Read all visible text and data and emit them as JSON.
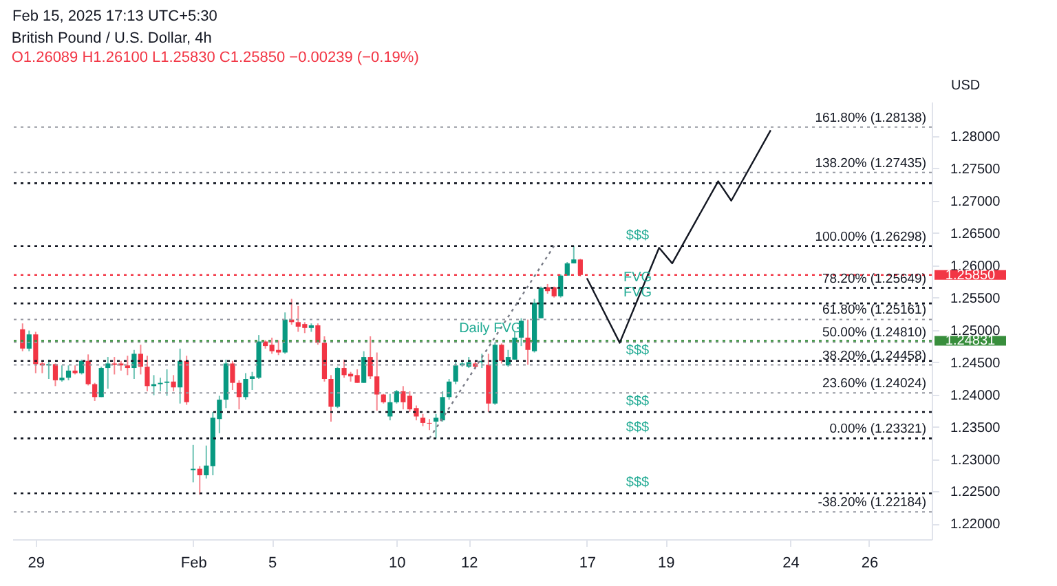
{
  "chart_data": {
    "type": "candlestick",
    "title": "British Pound / U.S. Dollar, 4h",
    "subtitle": "O1.26089 H1.26100 L1.25830 C1.25850 −0.00239 (−0.19%)",
    "ylabel": "USD",
    "annotations": [
      "Feb 15, 2025 17:13 UTC+5:30",
      {
        "text": "Daily FVG",
        "y": 1.24831
      }
    ],
    "categories": [
      null,
      null,
      "29",
      null,
      null,
      null,
      null,
      null,
      null,
      null,
      null,
      null,
      null,
      null,
      null,
      null,
      null,
      null,
      null,
      null,
      null,
      null,
      null,
      null,
      null,
      null,
      "Feb",
      null,
      null,
      null,
      null,
      null,
      null,
      null,
      null,
      null,
      null,
      null,
      "5",
      null,
      null,
      null,
      null,
      null,
      null,
      null,
      null,
      null,
      null,
      null,
      null,
      null,
      null,
      null,
      null,
      null,
      null,
      "10",
      null,
      null,
      null,
      null,
      null,
      null,
      null,
      null,
      null,
      null,
      "12",
      null,
      null,
      null,
      null,
      null,
      null,
      null,
      null,
      null,
      null,
      null,
      null,
      null,
      null,
      null,
      null,
      null,
      "17",
      null,
      null,
      null,
      null,
      null,
      null,
      null,
      null,
      null,
      null,
      null,
      "19",
      null,
      null,
      null,
      null,
      null,
      null,
      null,
      null,
      null,
      null,
      null,
      null,
      null,
      null,
      null,
      null,
      null,
      null,
      "24",
      null,
      null,
      null,
      null,
      null,
      null,
      null,
      null,
      null,
      null,
      null,
      "26",
      null,
      null,
      null,
      null,
      null,
      null,
      null,
      null
    ],
    "ohlc": [
      [
        1.2501,
        1.251,
        1.2467,
        1.2471
      ],
      [
        1.2471,
        1.2499,
        1.2467,
        1.2493
      ],
      [
        1.2493,
        1.2497,
        1.2433,
        1.2447
      ],
      [
        1.2448,
        1.2452,
        1.2433,
        1.2445
      ],
      [
        1.2445,
        1.2454,
        1.2424,
        1.2447
      ],
      [
        1.2447,
        1.2448,
        1.2413,
        1.2422
      ],
      [
        1.2422,
        1.2445,
        1.242,
        1.2426
      ],
      [
        1.2426,
        1.2445,
        1.2422,
        1.2437
      ],
      [
        1.2437,
        1.2445,
        1.2431,
        1.2433
      ],
      [
        1.2433,
        1.2454,
        1.2431,
        1.2452
      ],
      [
        1.2452,
        1.2462,
        1.2414,
        1.2416
      ],
      [
        1.2416,
        1.2418,
        1.239,
        1.2396
      ],
      [
        1.2396,
        1.2443,
        1.2396,
        1.2441
      ],
      [
        1.2441,
        1.2458,
        1.2409,
        1.2448
      ],
      [
        1.2448,
        1.2458,
        1.2431,
        1.2446
      ],
      [
        1.2448,
        1.2452,
        1.2437,
        1.2445
      ],
      [
        1.2445,
        1.246,
        1.243,
        1.2441
      ],
      [
        1.2441,
        1.2469,
        1.2424,
        1.2463
      ],
      [
        1.2463,
        1.2477,
        1.2431,
        1.2443
      ],
      [
        1.2443,
        1.246,
        1.2405,
        1.2413
      ],
      [
        1.2413,
        1.243,
        1.2399,
        1.2416
      ],
      [
        1.2416,
        1.2426,
        1.2405,
        1.2418
      ],
      [
        1.2418,
        1.2439,
        1.2398,
        1.242
      ],
      [
        1.242,
        1.243,
        1.2405,
        1.2411
      ],
      [
        1.2411,
        1.2471,
        1.2386,
        1.2452
      ],
      [
        1.2452,
        1.246,
        1.2384,
        1.2388
      ],
      [
        1.2283,
        1.2322,
        1.2264,
        1.2285
      ],
      [
        1.2285,
        1.2289,
        1.2245,
        1.2275
      ],
      [
        1.2275,
        1.2321,
        1.227,
        1.229
      ],
      [
        1.2289,
        1.2373,
        1.2275,
        1.2364
      ],
      [
        1.2362,
        1.2398,
        1.234,
        1.2392
      ],
      [
        1.2392,
        1.2454,
        1.2379,
        1.2448
      ],
      [
        1.2448,
        1.2452,
        1.2407,
        1.2418
      ],
      [
        1.2418,
        1.2422,
        1.2377,
        1.2396
      ],
      [
        1.2396,
        1.2433,
        1.2392,
        1.2424
      ],
      [
        1.2424,
        1.2435,
        1.2407,
        1.2428
      ],
      [
        1.2426,
        1.2492,
        1.2424,
        1.2482
      ],
      [
        1.2482,
        1.2484,
        1.2471,
        1.2475
      ],
      [
        1.2477,
        1.2488,
        1.2463,
        1.2467
      ],
      [
        1.2469,
        1.2484,
        1.2461,
        1.2465
      ],
      [
        1.2465,
        1.2527,
        1.2463,
        1.2516
      ],
      [
        1.2516,
        1.2548,
        1.2508,
        1.2512
      ],
      [
        1.2512,
        1.2537,
        1.2497,
        1.2505
      ],
      [
        1.2509,
        1.2512,
        1.2495,
        1.2503
      ],
      [
        1.2503,
        1.251,
        1.2497,
        1.2507
      ],
      [
        1.2507,
        1.251,
        1.2477,
        1.248
      ],
      [
        1.248,
        1.249,
        1.242,
        1.2424
      ],
      [
        1.2424,
        1.243,
        1.2358,
        1.2381
      ],
      [
        1.2381,
        1.2443,
        1.2379,
        1.2441
      ],
      [
        1.2441,
        1.2454,
        1.2426,
        1.243
      ],
      [
        1.2432,
        1.2435,
        1.242,
        1.2428
      ],
      [
        1.243,
        1.2439,
        1.2418,
        1.2418
      ],
      [
        1.2418,
        1.2467,
        1.2418,
        1.2458
      ],
      [
        1.2458,
        1.249,
        1.2424,
        1.2428
      ],
      [
        1.2428,
        1.2465,
        1.2375,
        1.24
      ],
      [
        1.24,
        1.2401,
        1.2386,
        1.2388
      ],
      [
        1.2366,
        1.2401,
        1.236,
        1.2388
      ],
      [
        1.2388,
        1.2407,
        1.2386,
        1.2405
      ],
      [
        1.2405,
        1.2413,
        1.2377,
        1.2388
      ],
      [
        1.2398,
        1.2405,
        1.2373,
        1.2377
      ],
      [
        1.2379,
        1.2383,
        1.236,
        1.2366
      ],
      [
        1.2364,
        1.237,
        1.2351,
        1.2356
      ],
      [
        1.2356,
        1.2362,
        1.2345,
        1.2355
      ],
      [
        1.2358,
        1.237,
        1.2332,
        1.2364
      ],
      [
        1.236,
        1.2405,
        1.2358,
        1.2396
      ],
      [
        1.2396,
        1.2424,
        1.2392,
        1.242
      ],
      [
        1.242,
        1.2454,
        1.2416,
        1.2445
      ],
      [
        1.2445,
        1.2452,
        1.2443,
        1.2448
      ],
      [
        1.2443,
        1.2458,
        1.2441,
        1.245
      ],
      [
        1.2448,
        1.2452,
        1.2439,
        1.2443
      ],
      [
        1.245,
        1.2463,
        1.2441,
        1.2452
      ],
      [
        1.2446,
        1.2463,
        1.2373,
        1.2386
      ],
      [
        1.2386,
        1.2481,
        1.2384,
        1.2477
      ],
      [
        1.2477,
        1.2479,
        1.2448,
        1.2452
      ],
      [
        1.2445,
        1.2469,
        1.2443,
        1.2458
      ],
      [
        1.2454,
        1.2497,
        1.2454,
        1.2488
      ],
      [
        1.2488,
        1.2518,
        1.2475,
        1.2514
      ],
      [
        1.2488,
        1.2516,
        1.2446,
        1.2469
      ],
      [
        1.2467,
        1.2548,
        1.2465,
        1.2542
      ],
      [
        1.2518,
        1.2567,
        1.2518,
        1.2565
      ],
      [
        1.2566,
        1.2571,
        1.2556,
        1.256
      ],
      [
        1.2566,
        1.2567,
        1.255,
        1.2552
      ],
      [
        1.2552,
        1.2586,
        1.255,
        1.2584
      ],
      [
        1.2584,
        1.2605,
        1.2584,
        1.2603
      ],
      [
        1.2603,
        1.263,
        1.2603,
        1.2609
      ],
      [
        1.26089,
        1.261,
        1.2583,
        1.2585
      ],
      null,
      null,
      null,
      null,
      null,
      null,
      null,
      null,
      null,
      null,
      null,
      null,
      null,
      null,
      null,
      null,
      null,
      null,
      null,
      null,
      null,
      null,
      null,
      null,
      null,
      null,
      null,
      null,
      null,
      null,
      null,
      null,
      null,
      null,
      null,
      null,
      null,
      null,
      null,
      null,
      null,
      null,
      null,
      null,
      null,
      null,
      null,
      null,
      null,
      null,
      null,
      null
    ],
    "series": [
      {
        "type": "line",
        "color": "#131722",
        "line_style": "solid",
        "values": [
          null,
          null,
          null,
          null,
          null,
          null,
          null,
          null,
          null,
          null,
          null,
          null,
          null,
          null,
          null,
          null,
          null,
          null,
          null,
          null,
          null,
          null,
          null,
          null,
          null,
          null,
          null,
          null,
          null,
          null,
          null,
          null,
          null,
          null,
          null,
          null,
          null,
          null,
          null,
          null,
          null,
          null,
          null,
          null,
          null,
          null,
          null,
          null,
          null,
          null,
          null,
          null,
          null,
          null,
          null,
          null,
          null,
          null,
          null,
          null,
          null,
          null,
          null,
          null,
          null,
          null,
          null,
          null,
          null,
          null,
          null,
          null,
          null,
          null,
          null,
          null,
          null,
          null,
          null,
          null,
          null,
          null,
          null,
          null,
          null,
          null,
          1.258,
          null,
          null,
          null,
          null,
          1.248,
          null,
          null,
          null,
          null,
          null,
          1.2627,
          null,
          1.2603,
          null,
          null,
          null,
          null,
          null,
          null,
          1.273,
          null,
          1.27,
          null,
          null,
          null,
          null,
          null,
          1.2809,
          null,
          null,
          null,
          null,
          null,
          null,
          null,
          null,
          null,
          null,
          null,
          null,
          null,
          null,
          null,
          null,
          null,
          null,
          null,
          null,
          null,
          null,
          null
        ]
      },
      {
        "type": "line",
        "color": "#787b86",
        "line_style": "dotted",
        "values": [
          null,
          null,
          null,
          null,
          null,
          null,
          null,
          null,
          null,
          null,
          null,
          null,
          null,
          null,
          null,
          null,
          null,
          null,
          null,
          null,
          null,
          null,
          null,
          null,
          null,
          null,
          null,
          null,
          null,
          null,
          null,
          null,
          null,
          null,
          null,
          null,
          null,
          null,
          null,
          null,
          null,
          null,
          null,
          null,
          null,
          null,
          null,
          null,
          null,
          null,
          null,
          null,
          null,
          null,
          null,
          null,
          null,
          null,
          null,
          null,
          null,
          null,
          1.2332,
          null,
          null,
          null,
          null,
          null,
          null,
          null,
          null,
          null,
          null,
          null,
          null,
          null,
          null,
          null,
          null,
          null,
          null,
          1.263,
          null,
          null,
          null,
          null,
          null,
          null,
          null,
          null,
          null,
          null,
          null,
          null,
          null,
          null,
          null,
          null,
          null,
          null,
          null,
          null,
          null,
          null,
          null,
          null,
          null,
          null,
          null,
          null,
          null,
          null,
          null,
          null,
          null,
          null,
          null,
          null,
          null,
          null,
          null,
          null,
          null,
          null,
          null,
          null,
          null,
          null,
          null,
          null,
          null,
          null,
          null,
          null,
          null,
          null,
          null,
          null
        ]
      }
    ],
    "ref_lines": [
      {
        "axis": "y",
        "value": 1.28138,
        "label": "161.80% (1.28138)",
        "line_style": "dotted"
      },
      {
        "axis": "y",
        "value": 1.27435,
        "label": "138.20% (1.27435)",
        "line_style": "dotted"
      },
      {
        "axis": "y",
        "value": 1.26298,
        "label": "100.00% (1.26298)",
        "line_style": "dotted"
      },
      {
        "axis": "y",
        "value": 1.25649,
        "label": "78.20% (1.25649)",
        "line_style": "dotted"
      },
      {
        "axis": "y",
        "value": 1.25161,
        "label": "61.80% (1.25161)",
        "line_style": "dotted"
      },
      {
        "axis": "y",
        "value": 1.2481,
        "label": "50.00% (1.24810)",
        "line_style": "dotted"
      },
      {
        "axis": "y",
        "value": 1.24458,
        "label": "38.20% (1.24458)",
        "line_style": "dotted"
      },
      {
        "axis": "y",
        "value": 1.24024,
        "label": "23.60% (1.24024)",
        "line_style": "dotted"
      },
      {
        "axis": "y",
        "value": 1.23321,
        "label": "0.00% (1.23321)",
        "line_style": "dotted"
      },
      {
        "axis": "y",
        "value": 1.22184,
        "label": "-38.20% (1.22184)",
        "line_style": "dotted"
      },
      {
        "axis": "y",
        "value": 1.2727,
        "color": "#131722",
        "line_style": "dotted"
      },
      {
        "axis": "y",
        "value": 1.26298,
        "label": "$$$",
        "color": "#131722",
        "line_style": "dotted"
      },
      {
        "axis": "y",
        "value": 1.2565,
        "label": "FVG",
        "color": "#131722",
        "line_style": "dotted"
      },
      {
        "axis": "y",
        "value": 1.2541,
        "label": "FVG",
        "color": "#131722",
        "line_style": "dotted"
      },
      {
        "axis": "y",
        "value": 1.2452,
        "label": "$$$",
        "color": "#131722",
        "line_style": "dotted"
      },
      {
        "axis": "y",
        "value": 1.2373,
        "label": "$$$",
        "color": "#131722",
        "line_style": "dotted"
      },
      {
        "axis": "y",
        "value": 1.23321,
        "label": "$$$",
        "color": "#131722",
        "line_style": "dotted"
      },
      {
        "axis": "y",
        "value": 1.2247,
        "label": "$$$",
        "color": "#131722",
        "line_style": "dotted"
      },
      {
        "axis": "y",
        "value": 1.2585,
        "label": "1.25850",
        "color": "#f23645",
        "line_style": "dotted"
      },
      {
        "axis": "y",
        "value": 1.24831,
        "label": "1.24831",
        "color": "#388e3c",
        "line_style": "dotted"
      }
    ],
    "ylim": [
      1.2176,
      1.2853
    ],
    "yticks": [
      {
        "value": 1.22,
        "label": "1.22000"
      },
      {
        "value": 1.225,
        "label": "1.22500"
      },
      {
        "value": 1.23,
        "label": "1.23000"
      },
      {
        "value": 1.235,
        "label": "1.23500"
      },
      {
        "value": 1.24,
        "label": "1.24000"
      },
      {
        "value": 1.245,
        "label": "1.24500"
      },
      {
        "value": 1.25,
        "label": "1.25000"
      },
      {
        "value": 1.255,
        "label": "1.25500"
      },
      {
        "value": 1.26,
        "label": "1.26000"
      },
      {
        "value": 1.265,
        "label": "1.26500"
      },
      {
        "value": 1.27,
        "label": "1.27000"
      },
      {
        "value": 1.275,
        "label": "1.27500"
      },
      {
        "value": 1.28,
        "label": "1.28000"
      }
    ],
    "grid": false
  }
}
